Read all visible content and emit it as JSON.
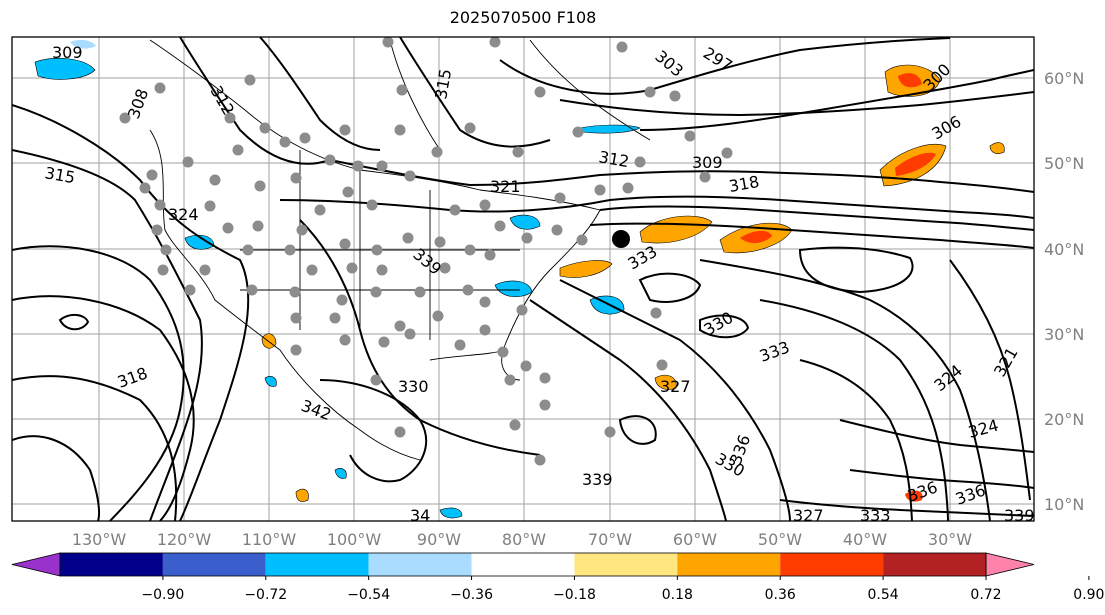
{
  "title": "2025070500 F108",
  "latitude_labels": [
    "60°N",
    "50°N",
    "40°N",
    "30°N",
    "20°N",
    "10°N"
  ],
  "longitude_labels": [
    "130°W",
    "120°W",
    "110°W",
    "100°W",
    "90°W",
    "80°W",
    "70°W",
    "60°W",
    "50°W",
    "40°W",
    "30°W"
  ],
  "contour_labels": [
    "309",
    "312",
    "308",
    "303",
    "297",
    "300",
    "306",
    "315",
    "318",
    "321",
    "324",
    "315",
    "309",
    "312",
    "339",
    "333",
    "330",
    "333",
    "327",
    "324",
    "321",
    "324",
    "318",
    "342",
    "330",
    "336",
    "339",
    "330",
    "336",
    "327",
    "333",
    "339",
    "336",
    "34"
  ],
  "colorbar": {
    "tick_labels": [
      "−0.90",
      "−0.72",
      "−0.54",
      "−0.36",
      "−0.18",
      "0.18",
      "0.36",
      "0.54",
      "0.72",
      "0.90"
    ],
    "colors": [
      "#9932cc",
      "#00008b",
      "#3a5fcd",
      "#00bfff",
      "#aadcff",
      "#ffffff",
      "#ffe680",
      "#ffa500",
      "#ff3c00",
      "#b22222",
      "#ff82ab"
    ]
  },
  "colors": {
    "positive_light": "#ffe680",
    "positive_mid": "#ffa500",
    "positive_high": "#ff3c00",
    "negative_light": "#aadcff",
    "negative_mid": "#00bfff",
    "station": "#8c8c8c",
    "marker": "#000000"
  }
}
